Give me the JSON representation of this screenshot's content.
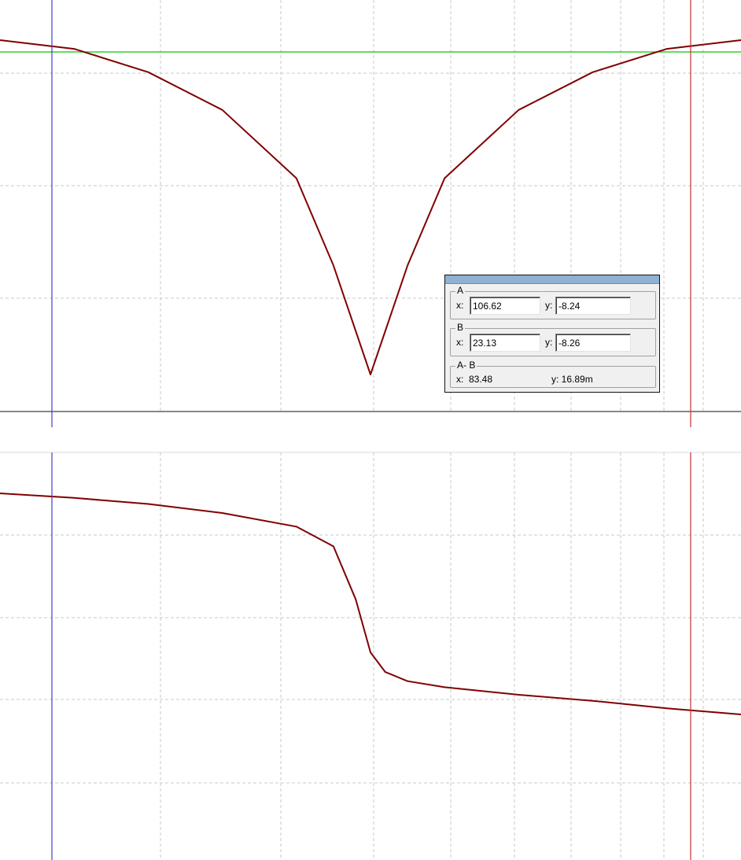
{
  "colors": {
    "background": "#ffffff",
    "grid": "#c8c8c8",
    "trace": "#800000",
    "cursor_a": "#4040c8",
    "cursor_b": "#c83232",
    "level_marker": "#00cc00",
    "axis": "#404040"
  },
  "cursor_readout": {
    "group_a": {
      "label": "A",
      "x_label": "x:",
      "x_value": "106.62",
      "y_label": "y:",
      "y_value": "-8.24"
    },
    "group_b": {
      "label": "B",
      "x_label": "x:",
      "x_value": "23.13",
      "y_label": "y:",
      "y_value": "-8.26"
    },
    "group_diff": {
      "label": "A- B",
      "x_text": "x:  83.48",
      "y_text": "y: 16.89m"
    }
  },
  "chart_data": [
    {
      "type": "line",
      "title": "",
      "xlabel": "",
      "ylabel": "",
      "grid": true,
      "shape": "magnitude-style notch, symmetric about center",
      "x": [
        0.0,
        0.1,
        0.2,
        0.3,
        0.4,
        0.45,
        0.5,
        0.55,
        0.6,
        0.7,
        0.8,
        0.9,
        1.0
      ],
      "series": [
        {
          "values": [
            -8.0,
            -8.6,
            -10.2,
            -12.8,
            -17.5,
            -23.5,
            -31.0,
            -23.5,
            -17.5,
            -12.8,
            -10.2,
            -8.6,
            -8.0
          ]
        }
      ],
      "level_marker": -8.25,
      "cursor_a_x": 106.62,
      "cursor_b_x": 23.13
    },
    {
      "type": "line",
      "title": "",
      "xlabel": "",
      "ylabel": "",
      "grid": true,
      "shape": "phase-style step at center",
      "x": [
        0.0,
        0.1,
        0.2,
        0.3,
        0.4,
        0.45,
        0.48,
        0.5,
        0.52,
        0.55,
        0.6,
        0.7,
        0.8,
        0.9,
        1.0
      ],
      "series": [
        {
          "values": [
            50,
            47,
            43,
            37,
            28,
            15,
            -20,
            -55,
            -68,
            -74,
            -78,
            -83,
            -87,
            -92,
            -96
          ]
        }
      ]
    }
  ]
}
